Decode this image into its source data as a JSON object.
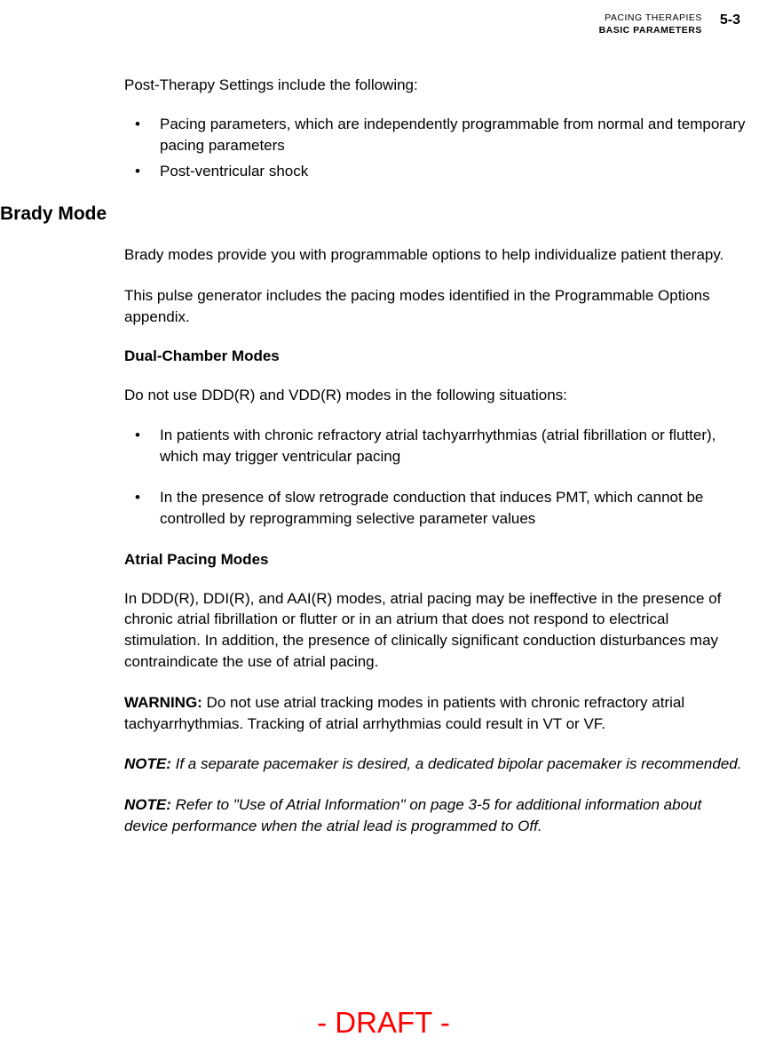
{
  "header": {
    "line1": "PACING THERAPIES",
    "line2": "BASIC PARAMETERS",
    "pageNum": "5-3"
  },
  "intro": "Post-Therapy Settings include the following:",
  "introBullets": [
    "Pacing parameters, which are independently programmable from normal and temporary pacing parameters",
    "Post-ventricular shock"
  ],
  "sectionHeading": "Brady Mode",
  "para1": "Brady modes provide you with programmable options to help individualize patient therapy.",
  "para2": "This pulse generator includes the pacing modes identified in the Programmable Options appendix.",
  "subHeading1": "Dual-Chamber Modes",
  "para3": "Do not use DDD(R) and VDD(R) modes in the following situations:",
  "situationBullets": [
    "In patients with chronic refractory atrial tachyarrhythmias (atrial fibrillation or flutter), which may trigger ventricular pacing",
    "In the presence of slow retrograde conduction that induces PMT, which cannot be controlled by reprogramming selective parameter values"
  ],
  "subHeading2": "Atrial Pacing Modes",
  "para4": "In DDD(R), DDI(R), and AAI(R) modes, atrial pacing may be ineffective in the presence of chronic atrial fibrillation or flutter or in an atrium that does not respond to electrical stimulation. In addition, the presence of clinically significant conduction disturbances may contraindicate the use of atrial pacing.",
  "warningLabel": "WARNING:",
  "warningText": " Do not use atrial tracking modes in patients with chronic refractory atrial tachyarrhythmias. Tracking of atrial arrhythmias could result in VT or VF.",
  "noteLabel": "NOTE:",
  "note1Text": " If a separate pacemaker is desired, a dedicated bipolar pacemaker is recommended.",
  "note2Text": " Refer to \"Use of Atrial Information\" on page 3-5 for additional information about device performance when the atrial lead is programmed to Off.",
  "draft": "- DRAFT -"
}
